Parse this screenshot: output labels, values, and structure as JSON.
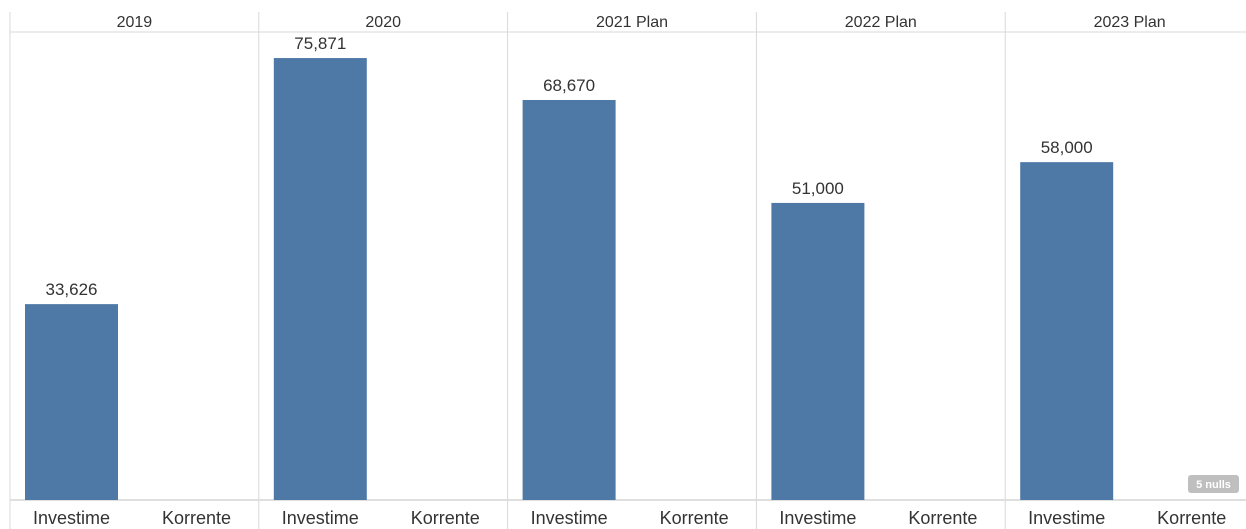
{
  "chart_data": {
    "type": "bar",
    "years": [
      "2019",
      "2020",
      "2021 Plan",
      "2022 Plan",
      "2023 Plan"
    ],
    "categories": [
      "Investime",
      "Korrente"
    ],
    "values": [
      [
        33626,
        null
      ],
      [
        75871,
        null
      ],
      [
        68670,
        null
      ],
      [
        51000,
        null
      ],
      [
        58000,
        null
      ]
    ],
    "value_labels": [
      [
        "33,626",
        ""
      ],
      [
        "75,871",
        ""
      ],
      [
        "68,670",
        ""
      ],
      [
        "51,000",
        ""
      ],
      [
        "58,000",
        ""
      ]
    ],
    "ylim": [
      0,
      80000
    ],
    "grid": false,
    "bar_color": "#4e79a7",
    "nulls_indicator": "5 nulls"
  }
}
